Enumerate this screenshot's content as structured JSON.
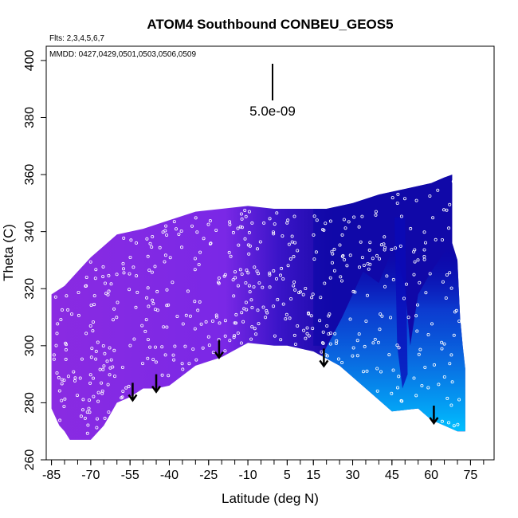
{
  "chart_data": {
    "type": "heatmap",
    "title": "ATOM4 Southbound CONBEU_GEOS5",
    "annotations": {
      "flights": "Flts: 2,3,4,5,6,7",
      "dates": "MMDD: 0427,0429,0501,0503,0506,0509",
      "scale_label": "5.0e-09"
    },
    "xlabel": "Latitude (deg N)",
    "ylabel": "Theta (C)",
    "xlim": [
      -87,
      84
    ],
    "ylim": [
      260,
      405
    ],
    "xticks": [
      -85,
      -70,
      -55,
      -40,
      -25,
      -10,
      5,
      15,
      30,
      45,
      60,
      75
    ],
    "xtick_labels": [
      "-85",
      "-70",
      "-55",
      "-40",
      "-25",
      "-10",
      "5",
      "15",
      "30",
      "45",
      "60",
      "75"
    ],
    "xminor_step": 5,
    "yticks": [
      260,
      280,
      300,
      320,
      340,
      360,
      380,
      400
    ],
    "ytick_labels": [
      "260",
      "280",
      "300",
      "320",
      "340",
      "360",
      "380",
      "400"
    ],
    "colors": {
      "low": "#8a2be2",
      "mid": "#1a0aa8",
      "high": "#00c0ff",
      "deep": "#0000b0"
    },
    "top_envelope": [
      [
        -85,
        318
      ],
      [
        -80,
        321
      ],
      [
        -75,
        326
      ],
      [
        -70,
        331
      ],
      [
        -60,
        339
      ],
      [
        -50,
        341
      ],
      [
        -40,
        344
      ],
      [
        -30,
        347
      ],
      [
        -20,
        348
      ],
      [
        -10,
        349
      ],
      [
        0,
        348
      ],
      [
        10,
        348
      ],
      [
        20,
        348
      ],
      [
        30,
        350
      ],
      [
        40,
        353
      ],
      [
        50,
        355
      ],
      [
        60,
        357
      ],
      [
        65,
        359
      ],
      [
        68,
        360
      ],
      [
        68,
        336
      ],
      [
        70,
        330
      ],
      [
        71,
        310
      ],
      [
        72,
        300
      ],
      [
        73,
        292
      ]
    ],
    "bottom_envelope": [
      [
        -85,
        278
      ],
      [
        -82,
        272
      ],
      [
        -80,
        270
      ],
      [
        -78,
        267
      ],
      [
        -70,
        267
      ],
      [
        -65,
        272
      ],
      [
        -60,
        280
      ],
      [
        -55,
        282
      ],
      [
        -50,
        285
      ],
      [
        -45,
        285
      ],
      [
        -40,
        286
      ],
      [
        -30,
        293
      ],
      [
        -20,
        296
      ],
      [
        -10,
        301
      ],
      [
        0,
        300
      ],
      [
        5,
        300
      ],
      [
        15,
        298
      ],
      [
        25,
        293
      ],
      [
        35,
        285
      ],
      [
        45,
        277
      ],
      [
        55,
        278
      ],
      [
        60,
        274
      ],
      [
        65,
        272
      ],
      [
        70,
        270
      ],
      [
        73,
        270
      ]
    ],
    "arrows": [
      [
        -54,
        287
      ],
      [
        -45,
        290
      ],
      [
        -21,
        302
      ],
      [
        19,
        299
      ],
      [
        61,
        279
      ]
    ]
  }
}
